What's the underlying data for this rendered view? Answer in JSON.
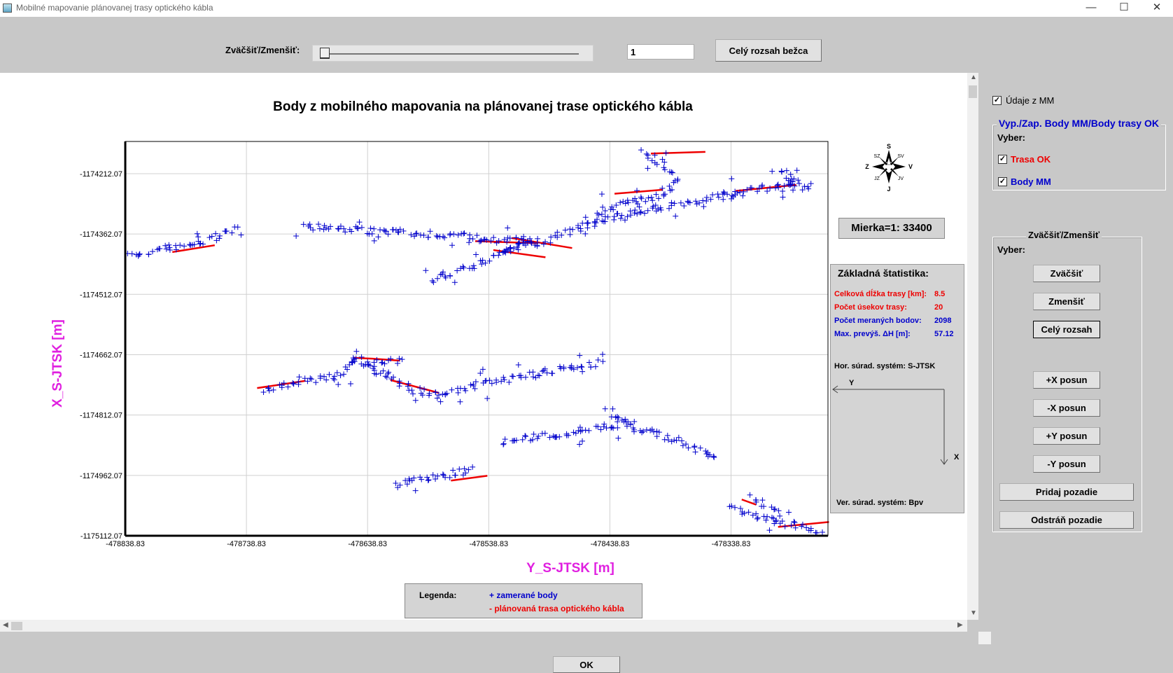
{
  "window": {
    "title": "Mobilné mapovanie plánovanej trasy optického kábla",
    "minimize": "—",
    "maximize": "☐",
    "close": "✕"
  },
  "toolbar": {
    "zoom_label": "Zväčšiť/Zmenšiť:",
    "zoom_value": "1",
    "full_extent_button": "Celý rozsah bežca",
    "slider_value": 0
  },
  "chart_data": {
    "type": "scatter",
    "title": "Body z mobilného mapovania na plánovanej trase optického kábla",
    "xlabel": "Y_S-JTSK [m]",
    "ylabel": "X_S-JTSK [m]",
    "xlim": [
      -478838.83,
      -478258.83
    ],
    "ylim": [
      -1175112.07,
      -1174132.07
    ],
    "x_ticks": [
      "-478838.83",
      "-478738.83",
      "-478638.83",
      "-478538.83",
      "-478438.83",
      "-478338.83"
    ],
    "x_tick_values": [
      -478838.83,
      -478738.83,
      -478638.83,
      -478538.83,
      -478438.83,
      -478338.83
    ],
    "y_ticks": [
      "-1174212.07",
      "-1174362.07",
      "-1174512.07",
      "-1174662.07",
      "-1174812.07",
      "-1174962.07",
      "-1175112.07"
    ],
    "y_tick_values": [
      -1174212.07,
      -1174362.07,
      -1174512.07,
      -1174662.07,
      -1174812.07,
      -1174962.07,
      -1175112.07
    ],
    "grid": true,
    "series": [
      {
        "name": "+ zamerané body",
        "color": "#0000cc",
        "marker": "+",
        "tracks": [
          [
            [
              -478838,
              -1174417
            ],
            [
              -478822,
              -1174407
            ],
            [
              -478805,
              -1174397
            ],
            [
              -478788,
              -1174389
            ],
            [
              -478770,
              -1174377
            ],
            [
              -478755,
              -1174357
            ],
            [
              -478745,
              -1174347
            ]
          ],
          [
            [
              -478690,
              -1174337
            ],
            [
              -478670,
              -1174346
            ],
            [
              -478650,
              -1174352
            ],
            [
              -478625,
              -1174357
            ],
            [
              -478600,
              -1174360
            ],
            [
              -478575,
              -1174365
            ],
            [
              -478550,
              -1174372
            ],
            [
              -478530,
              -1174377
            ],
            [
              -478510,
              -1174380
            ],
            [
              -478498,
              -1174385
            ]
          ],
          [
            [
              -478585,
              -1174477
            ],
            [
              -478568,
              -1174457
            ],
            [
              -478550,
              -1174437
            ],
            [
              -478530,
              -1174412
            ],
            [
              -478510,
              -1174392
            ],
            [
              -478490,
              -1174377
            ],
            [
              -478470,
              -1174352
            ],
            [
              -478450,
              -1174332
            ],
            [
              -478430,
              -1174317
            ],
            [
              -478410,
              -1174302
            ],
            [
              -478390,
              -1174295
            ],
            [
              -478370,
              -1174282
            ],
            [
              -478350,
              -1174270
            ],
            [
              -478325,
              -1174257
            ],
            [
              -478300,
              -1174242
            ],
            [
              -478285,
              -1174232
            ],
            [
              -478270,
              -1174247
            ]
          ],
          [
            [
              -478458,
              -1174332
            ],
            [
              -478440,
              -1174300
            ],
            [
              -478420,
              -1174280
            ],
            [
              -478398,
              -1174270
            ],
            [
              -478390,
              -1174246
            ],
            [
              -478385,
              -1174222
            ],
            [
              -478392,
              -1174192
            ],
            [
              -478415,
              -1174152
            ]
          ],
          [
            [
              -478510,
              -1174377
            ],
            [
              -478520,
              -1174395
            ],
            [
              -478528,
              -1174412
            ]
          ],
          [
            [
              -478285,
              -1174250
            ],
            [
              -478290,
              -1174224
            ],
            [
              -478300,
              -1174197
            ]
          ],
          [
            [
              -478725,
              -1174750
            ],
            [
              -478700,
              -1174735
            ],
            [
              -478680,
              -1174722
            ],
            [
              -478660,
              -1174705
            ],
            [
              -478650,
              -1174685
            ],
            [
              -478650,
              -1174660
            ],
            [
              -478640,
              -1174690
            ],
            [
              -478620,
              -1174720
            ],
            [
              -478600,
              -1174752
            ],
            [
              -478580,
              -1174762
            ],
            [
              -478560,
              -1174745
            ],
            [
              -478540,
              -1174733
            ],
            [
              -478520,
              -1174722
            ],
            [
              -478500,
              -1174710
            ],
            [
              -478480,
              -1174698
            ],
            [
              -478460,
              -1174688
            ],
            [
              -478445,
              -1174680
            ]
          ],
          [
            [
              -478640,
              -1174690
            ],
            [
              -478628,
              -1174680
            ],
            [
              -478610,
              -1174675
            ]
          ],
          [
            [
              -478528,
              -1174877
            ],
            [
              -478510,
              -1174870
            ],
            [
              -478490,
              -1174862
            ],
            [
              -478470,
              -1174855
            ],
            [
              -478450,
              -1174845
            ],
            [
              -478430,
              -1174835
            ],
            [
              -478410,
              -1174850
            ],
            [
              -478390,
              -1174870
            ],
            [
              -478375,
              -1174885
            ],
            [
              -478360,
              -1174905
            ],
            [
              -478350,
              -1174915
            ]
          ],
          [
            [
              -478440,
              -1174800
            ],
            [
              -478430,
              -1174820
            ],
            [
              -478425,
              -1174840
            ]
          ],
          [
            [
              -478615,
              -1174985
            ],
            [
              -478600,
              -1174975
            ],
            [
              -478580,
              -1174965
            ],
            [
              -478565,
              -1174955
            ],
            [
              -478550,
              -1174947
            ]
          ],
          [
            [
              -478338,
              -1175045
            ],
            [
              -478325,
              -1175055
            ],
            [
              -478310,
              -1175070
            ],
            [
              -478295,
              -1175082
            ],
            [
              -478275,
              -1175092
            ],
            [
              -478262,
              -1175102
            ]
          ],
          [
            [
              -478322,
              -1175012
            ],
            [
              -478312,
              -1175035
            ],
            [
              -478300,
              -1175060
            ]
          ]
        ]
      },
      {
        "name": "- plánovaná trasa optického kábla",
        "color": "#ee0000",
        "tracks": [
          [
            [
              -478800,
              -1174407
            ],
            [
              -478765,
              -1174390
            ]
          ],
          [
            [
              -478550,
              -1174380
            ],
            [
              -478498,
              -1174385
            ]
          ],
          [
            [
              -478435,
              -1174262
            ],
            [
              -478395,
              -1174252
            ]
          ],
          [
            [
              -478520,
              -1174372
            ],
            [
              -478470,
              -1174397
            ]
          ],
          [
            [
              -478535,
              -1174402
            ],
            [
              -478492,
              -1174420
            ]
          ],
          [
            [
              -478335,
              -1174255
            ],
            [
              -478285,
              -1174240
            ]
          ],
          [
            [
              -478405,
              -1174162
            ],
            [
              -478360,
              -1174158
            ]
          ],
          [
            [
              -478730,
              -1174745
            ],
            [
              -478690,
              -1174727
            ]
          ],
          [
            [
              -478650,
              -1174670
            ],
            [
              -478635,
              -1174672
            ],
            [
              -478612,
              -1174677
            ]
          ],
          [
            [
              -478620,
              -1174725
            ],
            [
              -478580,
              -1174757
            ]
          ],
          [
            [
              -478570,
              -1174975
            ],
            [
              -478540,
              -1174963
            ]
          ],
          [
            [
              -478330,
              -1175022
            ],
            [
              -478318,
              -1175035
            ]
          ],
          [
            [
              -478300,
              -1175090
            ],
            [
              -478258,
              -1175078
            ]
          ]
        ]
      }
    ]
  },
  "legend": {
    "title": "Legenda:",
    "measured": "+ zamerané body",
    "planned": "- plánovaná trasa optického kábla"
  },
  "north_arrow": {
    "N": "S",
    "S": "J",
    "E": "V",
    "W": "Z",
    "NE": "SV",
    "NW": "SZ",
    "SE": "JV",
    "SW": "JZ"
  },
  "scale": "Mierka=1: 33400",
  "stats": {
    "title": "Základná štatistika:",
    "rows": [
      {
        "label": "Celková dĺžka trasy [km]:",
        "value": "8.5",
        "color": "#ee0000"
      },
      {
        "label": "Počet úsekov trasy:",
        "value": "20",
        "color": "#ee0000"
      },
      {
        "label": "Počet meraných bodov:",
        "value": "2098",
        "color": "#0000cc"
      },
      {
        "label": "Max. prevýš. ΔH [m]:",
        "value": "57.12",
        "color": "#0000cc"
      }
    ],
    "hor_system": "Hor. súrad. systém: S-JTSK",
    "axis_y": "Y",
    "axis_x": "X",
    "ver_system": "Ver. súrad. systém: Bpv"
  },
  "panel": {
    "data_mm": "Údaje z MM",
    "toggle_group_title": "Vyp./Zap. Body MM/Body trasy OK",
    "select_label": "Vyber:",
    "trasa_ok": "Trasa OK",
    "body_mm": "Body MM",
    "zoom_group_title": "Zväčšiť/Zmenšiť",
    "zoom_select_label": "Vyber:",
    "buttons": {
      "zoom_in": "Zväčšiť",
      "zoom_out": "Zmenšiť",
      "full": "Celý rozsah",
      "plus_x": "+X posun",
      "minus_x": "-X posun",
      "plus_y": "+Y posun",
      "minus_y": "-Y posun",
      "add_bg": "Pridaj pozadie",
      "remove_bg": "Odstráň pozadie"
    }
  },
  "ok_button": "OK"
}
